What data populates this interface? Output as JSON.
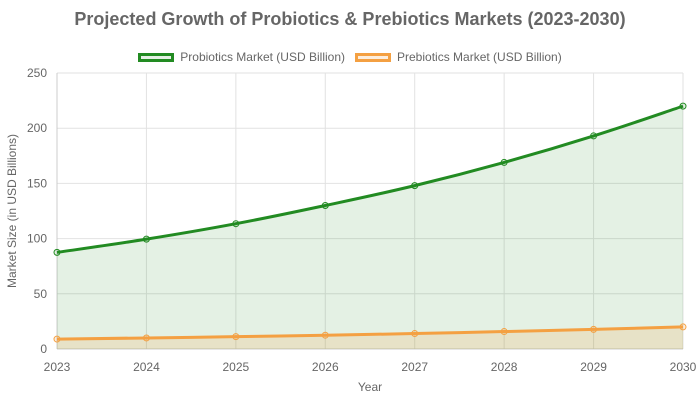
{
  "chart_data": {
    "type": "area",
    "title": "Projected Growth of Probiotics & Prebiotics Markets (2023-2030)",
    "xlabel": "Year",
    "ylabel": "Market Size (in USD Billions)",
    "categories": [
      "2023",
      "2024",
      "2025",
      "2026",
      "2027",
      "2028",
      "2029",
      "2030"
    ],
    "ylim": [
      0,
      250
    ],
    "yticks": [
      0,
      50,
      100,
      150,
      200,
      250
    ],
    "grid": true,
    "legend_position": "top-center",
    "series": [
      {
        "name": "Probiotics Market (USD Billion)",
        "values": [
          87.5,
          99.5,
          113.5,
          130,
          148,
          169,
          193,
          220
        ],
        "color": "#228b22",
        "fill": "rgba(34, 139, 34, 0.12)"
      },
      {
        "name": "Prebiotics Market (USD Billion)",
        "values": [
          9,
          10,
          11.2,
          12.5,
          14,
          15.8,
          17.8,
          20
        ],
        "color": "#f4a042",
        "fill": "rgba(244, 160, 66, 0.18)"
      }
    ]
  }
}
